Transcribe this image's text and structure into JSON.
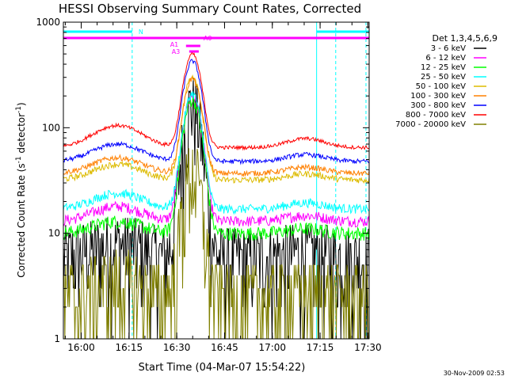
{
  "chart_data": {
    "type": "line",
    "title": "HESSI Observing Summary Count Rates, Corrected",
    "ylabel_main": "Corrected Count Rate (s",
    "ylabel_sup1": "-1",
    "ylabel_mid": " detector",
    "ylabel_sup2": "-1",
    "ylabel_end": ")",
    "xlabel": "Start Time (04-Mar-07 15:54:22)",
    "footer": "30-Nov-2009 02:53",
    "y_scale": "log",
    "ylim": [
      1,
      1000
    ],
    "xlim_minutes": [
      0,
      96
    ],
    "y_ticks": [
      {
        "value": 1,
        "label": "1"
      },
      {
        "value": 10,
        "label": "10"
      },
      {
        "value": 100,
        "label": "100"
      },
      {
        "value": 1000,
        "label": "1000"
      }
    ],
    "x_ticks": [
      {
        "minute": 5.6,
        "label": "16:00"
      },
      {
        "minute": 20.6,
        "label": "16:15"
      },
      {
        "minute": 35.6,
        "label": "16:30"
      },
      {
        "minute": 50.6,
        "label": "16:45"
      },
      {
        "minute": 65.6,
        "label": "17:00"
      },
      {
        "minute": 80.6,
        "label": "17:15"
      },
      {
        "minute": 95.6,
        "label": "17:30"
      }
    ],
    "legend_title": "Det 1,3,4,5,6,9",
    "series": [
      {
        "name": "3 - 6 keV",
        "color": "#000000",
        "baseline": 6,
        "hump": 8,
        "peak": 170,
        "noise": 0.9
      },
      {
        "name": "6 - 12 keV",
        "color": "#ff00ff",
        "baseline": 13,
        "hump": 18,
        "peak": 200,
        "noise": 0.12
      },
      {
        "name": "12 - 25 keV",
        "color": "#00ff00",
        "baseline": 10,
        "hump": 13,
        "peak": 185,
        "noise": 0.15
      },
      {
        "name": "25 - 50 keV",
        "color": "#00ffff",
        "baseline": 17,
        "hump": 24,
        "peak": 210,
        "noise": 0.1
      },
      {
        "name": "50 - 100 keV",
        "color": "#ddbb00",
        "baseline": 32,
        "hump": 45,
        "peak": 310,
        "noise": 0.07
      },
      {
        "name": "100 - 300 keV",
        "color": "#ff8000",
        "baseline": 37,
        "hump": 52,
        "peak": 290,
        "noise": 0.06
      },
      {
        "name": "300 - 800 keV",
        "color": "#0000ff",
        "baseline": 48,
        "hump": 70,
        "peak": 430,
        "noise": 0.05
      },
      {
        "name": "800 - 7000 keV",
        "color": "#ff0000",
        "baseline": 65,
        "hump": 105,
        "peak": 500,
        "noise": 0.04
      },
      {
        "name": "7000 - 20000 keV",
        "color": "#808000",
        "baseline": 2.5,
        "hump": 3.5,
        "peak": 40,
        "noise": 1.0
      }
    ],
    "flag_labels": {
      "n": "N",
      "a0": "A0",
      "a1": "A1",
      "a3": "A3"
    },
    "flag_colors": {
      "cyan": "#00ffff",
      "magenta": "#ff00ff"
    }
  }
}
